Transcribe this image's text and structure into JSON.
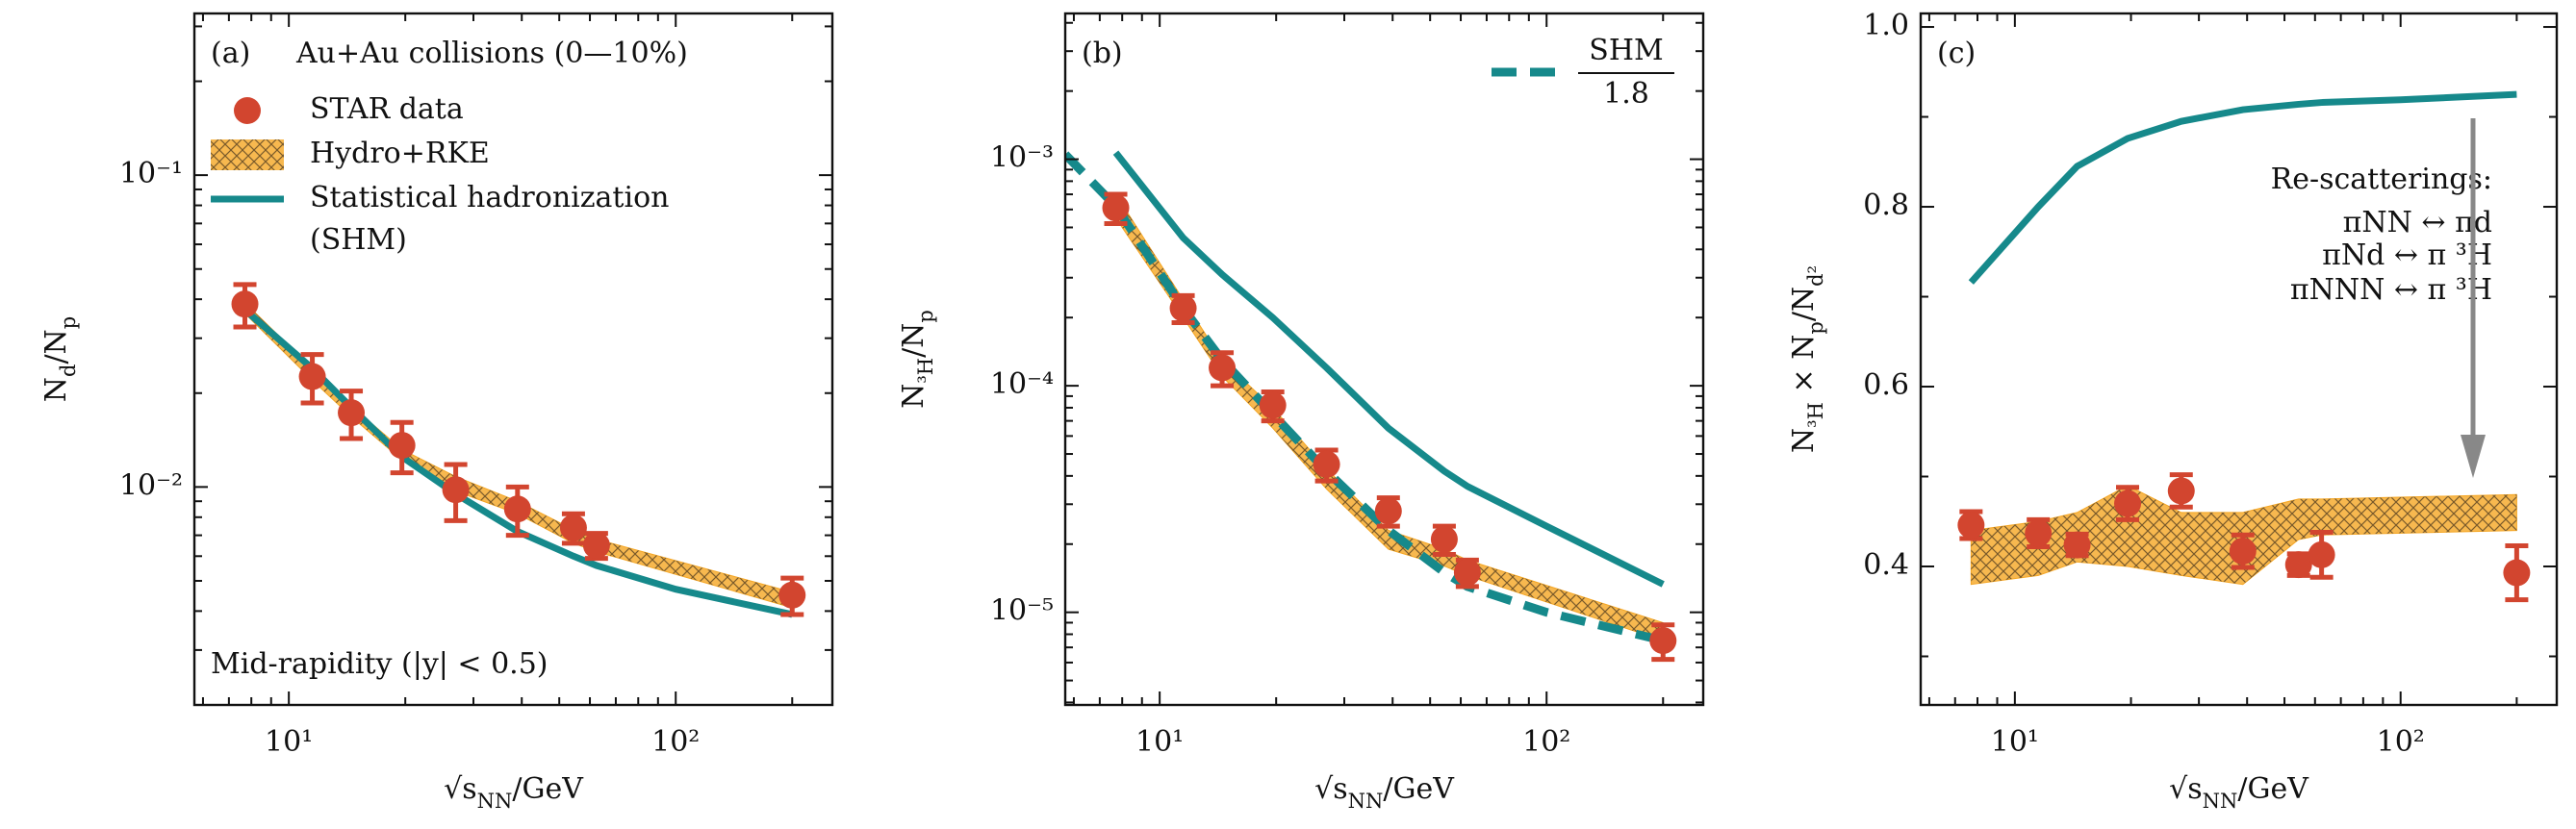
{
  "chart_data": [
    {
      "type": "line",
      "log_x": true,
      "log_y": true,
      "panel_label": "(a)",
      "title": "Au+Au collisions (0—10%)",
      "annotation": "Mid-rapidity (|y| < 0.5)",
      "legend": true,
      "legend_position": "upper left",
      "xlabel": [
        "√s",
        "NN",
        "/GeV"
      ],
      "ylabel": [
        "N",
        "d",
        "/N",
        "p"
      ],
      "xlim": [
        5.7,
        254
      ],
      "ylim": [
        0.002,
        0.33
      ],
      "xticks": [
        {
          "value": 10,
          "label": "10¹"
        },
        {
          "value": 100,
          "label": "10²"
        }
      ],
      "xminorticks": [
        6,
        7,
        8,
        9,
        20,
        30,
        40,
        50,
        60,
        70,
        80,
        90,
        200
      ],
      "yticks": [
        {
          "value": 0.01,
          "label": "10⁻²"
        },
        {
          "value": 0.1,
          "label": "10⁻¹"
        }
      ],
      "yminorticks": [
        0.002,
        0.003,
        0.004,
        0.005,
        0.006,
        0.007,
        0.008,
        0.009,
        0.02,
        0.03,
        0.04,
        0.05,
        0.06,
        0.07,
        0.08,
        0.09,
        0.2,
        0.3
      ],
      "series": [
        {
          "name": "Hydro+RKE",
          "kind": "band",
          "color": "#f5a623",
          "x": [
            7.7,
            11.5,
            14.5,
            19.6,
            27,
            39,
            54.4,
            62.4,
            200
          ],
          "lower": [
            0.036,
            0.022,
            0.0168,
            0.0122,
            0.0097,
            0.0082,
            0.0066,
            0.0062,
            0.0041
          ],
          "upper": [
            0.039,
            0.024,
            0.0182,
            0.0132,
            0.0108,
            0.009,
            0.0073,
            0.0068,
            0.0046
          ]
        },
        {
          "name": "Statistical hadronization (SHM)",
          "kind": "line",
          "color": "#16898b",
          "x": [
            7.7,
            11.5,
            14.5,
            19.6,
            27,
            39,
            54.4,
            62.4,
            100,
            200
          ],
          "values": [
            0.037,
            0.024,
            0.018,
            0.0125,
            0.0095,
            0.0072,
            0.006,
            0.0056,
            0.0047,
            0.0039
          ]
        },
        {
          "name": "STAR data",
          "kind": "points",
          "color": "#d2452f",
          "x": [
            7.7,
            11.5,
            14.5,
            19.6,
            27,
            39,
            54.4,
            62.4,
            200
          ],
          "values": [
            0.0386,
            0.0226,
            0.0173,
            0.0136,
            0.0098,
            0.0085,
            0.0074,
            0.0065,
            0.0045
          ],
          "errors": [
            0.006,
            0.004,
            0.003,
            0.0025,
            0.002,
            0.0015,
            0.0008,
            0.0006,
            0.0006
          ]
        }
      ]
    },
    {
      "type": "line",
      "log_x": true,
      "log_y": true,
      "panel_label": "(b)",
      "legend": true,
      "legend_position": "upper right",
      "xlabel": [
        "√s",
        "NN",
        "/GeV"
      ],
      "ylabel": [
        "N",
        "³H",
        "/N",
        "p"
      ],
      "xlim": [
        5.7,
        254
      ],
      "ylim": [
        3.9e-06,
        0.0044
      ],
      "xticks": [
        {
          "value": 10,
          "label": "10¹"
        },
        {
          "value": 100,
          "label": "10²"
        }
      ],
      "xminorticks": [
        6,
        7,
        8,
        9,
        20,
        30,
        40,
        50,
        60,
        70,
        80,
        90,
        200
      ],
      "yticks": [
        {
          "value": 1e-05,
          "label": "10⁻⁵"
        },
        {
          "value": 0.0001,
          "label": "10⁻⁴"
        },
        {
          "value": 0.001,
          "label": "10⁻³"
        }
      ],
      "yminorticks": [
        4e-06,
        5e-06,
        6e-06,
        7e-06,
        8e-06,
        9e-06,
        2e-05,
        3e-05,
        4e-05,
        5e-05,
        6e-05,
        7e-05,
        8e-05,
        9e-05,
        0.0002,
        0.0003,
        0.0004,
        0.0005,
        0.0006,
        0.0007,
        0.0008,
        0.0009,
        0.002,
        0.003,
        0.004
      ],
      "series": [
        {
          "kind": "band",
          "color": "#f5a623",
          "x": [
            7.7,
            11.5,
            14.5,
            19.6,
            27,
            39,
            54.4,
            62.4,
            200
          ],
          "lower": [
            0.00055,
            0.0002,
            0.00011,
            6.5e-05,
            3.5e-05,
            1.9e-05,
            1.6e-05,
            1.45e-05,
            7.5e-06
          ],
          "upper": [
            0.0007,
            0.00024,
            0.00013,
            8e-05,
            4.3e-05,
            2.3e-05,
            1.9e-05,
            1.7e-05,
            9e-06
          ]
        },
        {
          "kind": "line",
          "color": "#16898b",
          "x": [
            7.7,
            11.5,
            14.5,
            19.6,
            27,
            39,
            54.4,
            62.4,
            100,
            200
          ],
          "values": [
            0.00107,
            0.00045,
            0.00031,
            0.0002,
            0.00012,
            6.5e-05,
            4.2e-05,
            3.6e-05,
            2.4e-05,
            1.33e-05
          ]
        },
        {
          "name": [
            "SHM",
            "1.8"
          ],
          "kind": "dashed",
          "color": "#16898b",
          "x": [
            5.7,
            7.7,
            11.5,
            14.5,
            19.6,
            27,
            39,
            54.4,
            62.4,
            100,
            200
          ],
          "values": [
            0.00105,
            0.00062,
            0.00022,
            0.00013,
            7.5e-05,
            4.2e-05,
            2.3e-05,
            1.5e-05,
            1.3e-05,
            1e-05,
            7.5e-06
          ]
        },
        {
          "kind": "points",
          "color": "#d2452f",
          "x": [
            7.7,
            11.5,
            14.5,
            19.6,
            27,
            39,
            54.4,
            62.4,
            200
          ],
          "values": [
            0.00061,
            0.00022,
            0.00012,
            8.2e-05,
            4.5e-05,
            2.8e-05,
            2.1e-05,
            1.5e-05,
            7.5e-06
          ],
          "errors": [
            9e-05,
            3e-05,
            2e-05,
            1.2e-05,
            7e-06,
            4e-06,
            3e-06,
            2e-06,
            1.3e-06
          ]
        }
      ]
    },
    {
      "type": "line",
      "log_x": true,
      "log_y": false,
      "panel_label": "(c)",
      "annotation": [
        "Re-scatterings:",
        "πNN ↔ πd",
        "πNd ↔ π ³H",
        "πNNN ↔ π ³H"
      ],
      "xlabel": [
        "√s",
        "NN",
        "/GeV"
      ],
      "ylabel": [
        "N",
        "³H",
        " × N",
        "p",
        "/N",
        "d²"
      ],
      "xlim": [
        5.7,
        254
      ],
      "ylim": [
        0.246,
        1.015
      ],
      "xticks": [
        {
          "value": 10,
          "label": "10¹"
        },
        {
          "value": 100,
          "label": "10²"
        }
      ],
      "xminorticks": [
        6,
        7,
        8,
        9,
        20,
        30,
        40,
        50,
        60,
        70,
        80,
        90,
        200
      ],
      "yticks": [
        0.4,
        0.6,
        0.8,
        {
          "value": 1,
          "label": "1.0"
        }
      ],
      "yminorticks": [
        0.3,
        0.5,
        0.7,
        0.9
      ],
      "series": [
        {
          "kind": "band",
          "color": "#f5a623",
          "x": [
            7.7,
            11.5,
            14.5,
            19.6,
            27,
            39,
            54.4,
            62.4,
            200
          ],
          "lower": [
            0.38,
            0.39,
            0.405,
            0.4,
            0.39,
            0.38,
            0.43,
            0.435,
            0.44
          ],
          "upper": [
            0.44,
            0.45,
            0.46,
            0.49,
            0.46,
            0.46,
            0.475,
            0.475,
            0.48
          ]
        },
        {
          "kind": "line",
          "color": "#16898b",
          "x": [
            7.7,
            11.5,
            14.5,
            19.6,
            27,
            39,
            54.4,
            62.4,
            100,
            200
          ],
          "values": [
            0.716,
            0.8,
            0.845,
            0.876,
            0.895,
            0.908,
            0.914,
            0.916,
            0.919,
            0.925
          ]
        },
        {
          "kind": "points",
          "color": "#d2452f",
          "x": [
            7.7,
            11.5,
            14.5,
            19.6,
            27,
            39,
            54.4,
            62.4,
            200
          ],
          "values": [
            0.446,
            0.437,
            0.424,
            0.47,
            0.484,
            0.417,
            0.402,
            0.413,
            0.393
          ],
          "errors": [
            0.015,
            0.015,
            0.012,
            0.018,
            0.018,
            0.018,
            0.012,
            0.025,
            0.03
          ]
        }
      ]
    }
  ]
}
